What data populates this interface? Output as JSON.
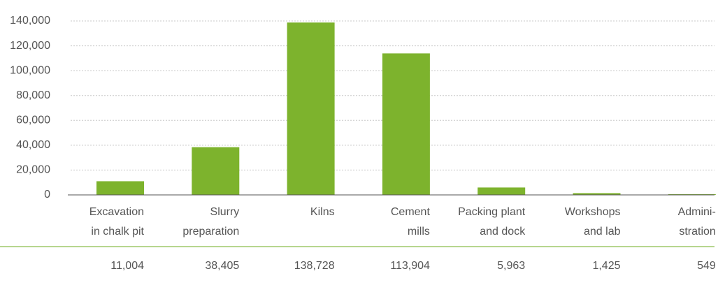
{
  "chart_data": {
    "type": "bar",
    "categories": [
      [
        "Excavation",
        "in chalk pit"
      ],
      [
        "Slurry",
        "preparation"
      ],
      [
        "Kilns"
      ],
      [
        "Cement",
        "mills"
      ],
      [
        "Packing plant",
        "and dock"
      ],
      [
        "Workshops",
        "and lab"
      ],
      [
        "Admini-",
        "stration"
      ]
    ],
    "values": [
      11004,
      38405,
      138728,
      113904,
      5963,
      1425,
      549
    ],
    "value_labels": [
      "11,004",
      "38,405",
      "138,728",
      "113,904",
      "5,963",
      "1,425",
      "549"
    ],
    "color": "#7db32d",
    "ylim": [
      0,
      140000
    ],
    "yticks": [
      0,
      {
        "value": 20000,
        "label": "20,000"
      },
      {
        "value": 40000,
        "label": "40,000"
      },
      {
        "value": 60000,
        "label": "60,000"
      },
      {
        "value": 80000,
        "label": "80,000"
      },
      {
        "value": 100000,
        "label": "100,000"
      },
      {
        "value": 120000,
        "label": "120,000"
      },
      {
        "value": 140000,
        "label": "140,000"
      }
    ],
    "grid": true
  }
}
